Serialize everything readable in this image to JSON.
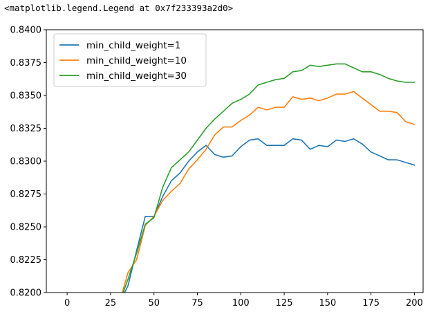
{
  "output_repr": "<matplotlib.legend.Legend at 0x7f233393a2d0>",
  "chart_data": {
    "type": "line",
    "title": "",
    "xlabel": "",
    "ylabel": "",
    "xlim": [
      -12,
      205
    ],
    "ylim": [
      0.82,
      0.84
    ],
    "xticks": [
      0,
      25,
      50,
      75,
      100,
      125,
      150,
      175,
      200
    ],
    "xtick_labels": [
      "0",
      "25",
      "50",
      "75",
      "100",
      "125",
      "150",
      "175",
      "200"
    ],
    "yticks": [
      0.82,
      0.8225,
      0.825,
      0.8275,
      0.83,
      0.8325,
      0.835,
      0.8375,
      0.84
    ],
    "ytick_labels": [
      "0.8200",
      "0.8225",
      "0.8250",
      "0.8275",
      "0.8300",
      "0.8325",
      "0.8350",
      "0.8375",
      "0.8400"
    ],
    "grid": false,
    "legend_position": "upper left",
    "series": [
      {
        "name": "min_child_weight=1",
        "color": "#1f77b4",
        "x": [
          30,
          35,
          40,
          45,
          50,
          55,
          60,
          65,
          70,
          75,
          80,
          85,
          90,
          95,
          100,
          105,
          110,
          115,
          120,
          125,
          130,
          135,
          140,
          145,
          150,
          155,
          160,
          165,
          170,
          175,
          180,
          185,
          190,
          195,
          200
        ],
        "y": [
          0.8192,
          0.8205,
          0.8232,
          0.8258,
          0.8258,
          0.8273,
          0.8285,
          0.8291,
          0.83,
          0.8307,
          0.8312,
          0.8305,
          0.8303,
          0.8304,
          0.8311,
          0.8316,
          0.8317,
          0.8312,
          0.8312,
          0.8312,
          0.8317,
          0.8316,
          0.8309,
          0.8312,
          0.8311,
          0.8316,
          0.8315,
          0.8317,
          0.8313,
          0.8307,
          0.8304,
          0.8301,
          0.8301,
          0.8299,
          0.8297
        ]
      },
      {
        "name": "min_child_weight=10",
        "color": "#ff7f0e",
        "x": [
          30,
          35,
          40,
          45,
          50,
          55,
          60,
          65,
          70,
          75,
          80,
          85,
          90,
          95,
          100,
          105,
          110,
          115,
          120,
          125,
          130,
          135,
          140,
          145,
          150,
          155,
          160,
          165,
          170,
          175,
          180,
          185,
          190,
          195,
          200
        ],
        "y": [
          0.8192,
          0.8215,
          0.8225,
          0.8251,
          0.8258,
          0.827,
          0.8277,
          0.8283,
          0.8294,
          0.8301,
          0.8309,
          0.832,
          0.8326,
          0.8326,
          0.8331,
          0.8335,
          0.8341,
          0.8339,
          0.8341,
          0.8341,
          0.8349,
          0.8347,
          0.8348,
          0.8346,
          0.8348,
          0.8351,
          0.8351,
          0.8353,
          0.8348,
          0.8343,
          0.8338,
          0.8338,
          0.8337,
          0.833,
          0.8328
        ]
      },
      {
        "name": "min_child_weight=30",
        "color": "#2ca02c",
        "x": [
          30,
          35,
          40,
          45,
          50,
          55,
          60,
          65,
          70,
          75,
          80,
          85,
          90,
          95,
          100,
          105,
          110,
          115,
          120,
          125,
          130,
          135,
          140,
          145,
          150,
          155,
          160,
          165,
          170,
          175,
          180,
          185,
          190,
          195,
          200
        ],
        "y": [
          0.8192,
          0.821,
          0.823,
          0.8252,
          0.8257,
          0.828,
          0.8295,
          0.8301,
          0.8307,
          0.8316,
          0.8325,
          0.8332,
          0.8338,
          0.8344,
          0.8347,
          0.8351,
          0.8358,
          0.836,
          0.8362,
          0.8363,
          0.8368,
          0.8369,
          0.8373,
          0.8372,
          0.8373,
          0.8374,
          0.8374,
          0.8371,
          0.8368,
          0.8368,
          0.8366,
          0.8363,
          0.8361,
          0.836,
          0.836
        ]
      }
    ]
  }
}
